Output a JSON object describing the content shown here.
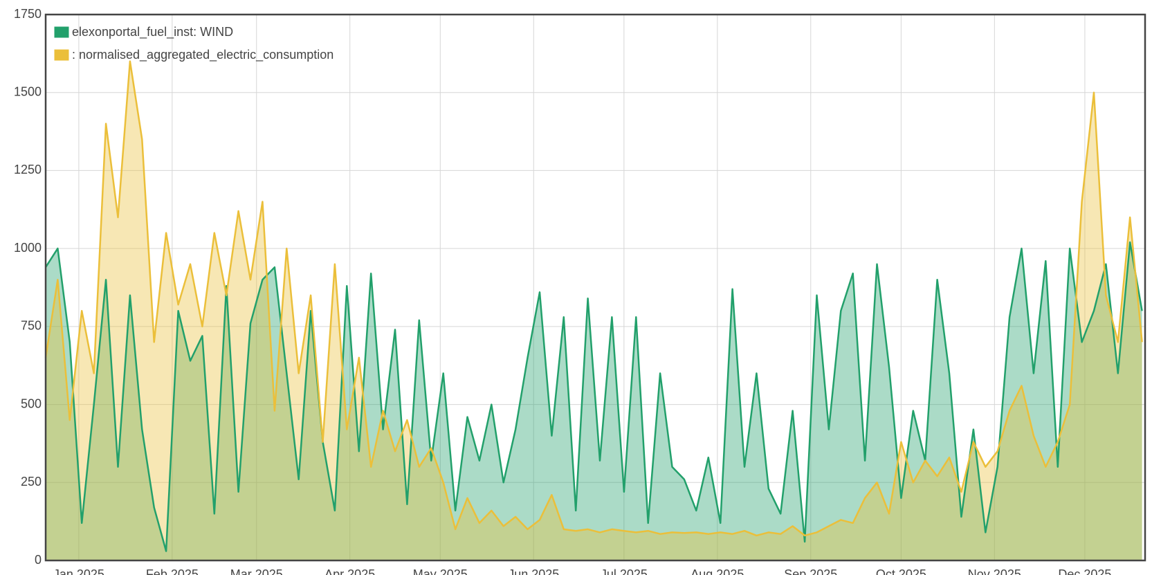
{
  "chart_data": {
    "type": "area",
    "x": [
      -11,
      -7,
      -3,
      1,
      5,
      9,
      13,
      17,
      21,
      25,
      29,
      33,
      37,
      41,
      45,
      49,
      53,
      57,
      61,
      65,
      69,
      73,
      77,
      81,
      85,
      89,
      93,
      97,
      101,
      105,
      109,
      113,
      117,
      121,
      125,
      129,
      133,
      137,
      141,
      145,
      149,
      153,
      157,
      161,
      165,
      169,
      173,
      177,
      181,
      185,
      189,
      193,
      197,
      201,
      205,
      209,
      213,
      217,
      221,
      225,
      229,
      233,
      237,
      241,
      245,
      249,
      253,
      257,
      261,
      265,
      269,
      273,
      277,
      281,
      285,
      289,
      293,
      297,
      301,
      305,
      309,
      313,
      317,
      321,
      325,
      329,
      333,
      337,
      341,
      345,
      349,
      353
    ],
    "series": [
      {
        "name": "elexonportal_fuel_inst: WIND",
        "color": "#22a06b",
        "values": [
          940,
          1000,
          700,
          120,
          500,
          900,
          300,
          850,
          420,
          170,
          30,
          800,
          640,
          720,
          150,
          880,
          220,
          760,
          900,
          940,
          600,
          260,
          800,
          380,
          160,
          880,
          350,
          920,
          420,
          740,
          180,
          770,
          320,
          600,
          160,
          460,
          320,
          500,
          250,
          420,
          650,
          860,
          400,
          780,
          160,
          840,
          320,
          780,
          220,
          780,
          120,
          600,
          300,
          260,
          160,
          330,
          120,
          870,
          300,
          600,
          230,
          150,
          480,
          60,
          850,
          420,
          800,
          920,
          320,
          950,
          620,
          200,
          480,
          320,
          900,
          600,
          140,
          420,
          90,
          300,
          780,
          1000,
          600,
          960,
          300,
          1000,
          700,
          800,
          950,
          600,
          1020,
          800
        ]
      },
      {
        "name": ": normalised_aggregated_electric_consumption",
        "color": "#ebbf3a",
        "values": [
          650,
          900,
          450,
          800,
          600,
          1400,
          1100,
          1600,
          1350,
          700,
          1050,
          820,
          950,
          750,
          1050,
          850,
          1120,
          900,
          1150,
          480,
          1000,
          600,
          850,
          380,
          950,
          420,
          650,
          300,
          480,
          350,
          450,
          300,
          360,
          250,
          100,
          200,
          120,
          160,
          110,
          140,
          100,
          130,
          210,
          100,
          95,
          100,
          90,
          100,
          95,
          90,
          95,
          85,
          90,
          88,
          90,
          85,
          90,
          85,
          95,
          80,
          90,
          85,
          110,
          80,
          90,
          110,
          130,
          120,
          200,
          250,
          150,
          380,
          250,
          320,
          270,
          330,
          220,
          380,
          300,
          350,
          480,
          560,
          400,
          300,
          380,
          500,
          1150,
          1500,
          850,
          700,
          1100,
          700
        ]
      }
    ],
    "xlim": [
      -11,
      354
    ],
    "xticks": [
      {
        "value": 0,
        "label": "Jan 2025"
      },
      {
        "value": 31,
        "label": "Feb 2025"
      },
      {
        "value": 59,
        "label": "Mar 2025"
      },
      {
        "value": 90,
        "label": "Apr 2025"
      },
      {
        "value": 120,
        "label": "May 2025"
      },
      {
        "value": 151,
        "label": "Jun 2025"
      },
      {
        "value": 181,
        "label": "Jul 2025"
      },
      {
        "value": 212,
        "label": "Aug 2025"
      },
      {
        "value": 243,
        "label": "Sep 2025"
      },
      {
        "value": 273,
        "label": "Oct 2025"
      },
      {
        "value": 304,
        "label": "Nov 2025"
      },
      {
        "value": 334,
        "label": "Dec 2025"
      }
    ],
    "ylim": [
      0,
      1750
    ],
    "yticks": [
      0,
      250,
      500,
      750,
      1000,
      1250,
      1500,
      1750
    ],
    "grid": true,
    "legend": "upper left"
  }
}
